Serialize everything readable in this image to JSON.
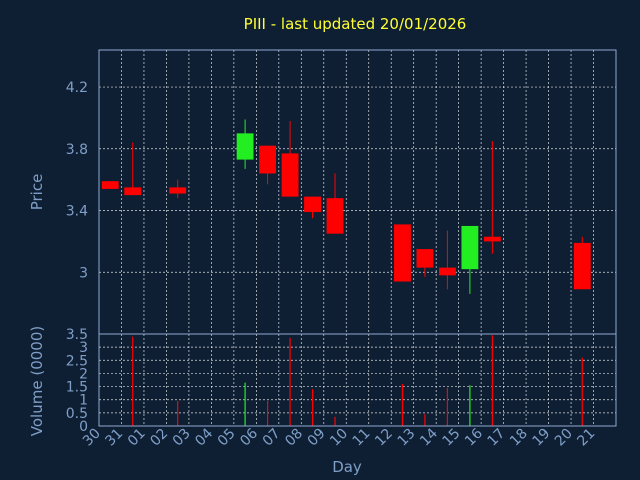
{
  "chart_data": [
    {
      "type": "candlestick",
      "title": "PIII - last updated 20/01/2026",
      "ylabel": "Price",
      "yticks": [
        4.2,
        3.8,
        3.4,
        3
      ],
      "ytick_labels": [
        "4.2",
        "3.8",
        "3.4",
        "3"
      ],
      "ylim": [
        2.6,
        4.44
      ],
      "grid": true,
      "colors": {
        "up": "#22ee22",
        "down": "#ff0000"
      },
      "candles": [
        {
          "day": "30",
          "open": 3.59,
          "close": 3.54,
          "high": 3.59,
          "low": 3.54
        },
        {
          "day": "31",
          "open": 3.55,
          "close": 3.5,
          "high": 3.84,
          "low": 3.5
        },
        {
          "day": "02",
          "open": 3.55,
          "close": 3.51,
          "high": 3.6,
          "low": 3.48
        },
        {
          "day": "05",
          "open": 3.73,
          "close": 3.9,
          "high": 3.99,
          "low": 3.67
        },
        {
          "day": "06",
          "open": 3.82,
          "close": 3.64,
          "high": 3.82,
          "low": 3.57
        },
        {
          "day": "07",
          "open": 3.77,
          "close": 3.49,
          "high": 3.98,
          "low": 3.49
        },
        {
          "day": "08",
          "open": 3.49,
          "close": 3.39,
          "high": 3.49,
          "low": 3.35
        },
        {
          "day": "09",
          "open": 3.48,
          "close": 3.25,
          "high": 3.64,
          "low": 3.25
        },
        {
          "day": "12",
          "open": 3.31,
          "close": 2.94,
          "high": 3.31,
          "low": 2.94
        },
        {
          "day": "13",
          "open": 3.15,
          "close": 3.03,
          "high": 3.15,
          "low": 2.97
        },
        {
          "day": "14",
          "open": 3.03,
          "close": 2.98,
          "high": 3.27,
          "low": 2.89
        },
        {
          "day": "15",
          "open": 3.02,
          "close": 3.3,
          "high": 3.3,
          "low": 2.86
        },
        {
          "day": "16",
          "open": 3.23,
          "close": 3.2,
          "high": 3.85,
          "low": 3.12
        },
        {
          "day": "20",
          "open": 3.19,
          "close": 2.89,
          "high": 3.23,
          "low": 2.89
        }
      ]
    },
    {
      "type": "bar",
      "ylabel": "Volume (0000)",
      "xlabel": "Day",
      "yticks": [
        3.5,
        3,
        2.5,
        2,
        1.5,
        1,
        0.5,
        0
      ],
      "ytick_labels": [
        "3.5",
        "3",
        "2.5",
        "2",
        "1.5",
        "1",
        "0.5",
        "0"
      ],
      "ylim": [
        0,
        3.5
      ],
      "grid": true,
      "categories": [
        "30",
        "31",
        "01",
        "02",
        "03",
        "04",
        "05",
        "06",
        "07",
        "08",
        "09",
        "10",
        "11",
        "12",
        "13",
        "14",
        "15",
        "16",
        "17",
        "18",
        "19",
        "20",
        "21"
      ],
      "volumes": [
        {
          "day": "31",
          "value": 3.4,
          "direction": "down"
        },
        {
          "day": "02",
          "value": 0.95,
          "direction": "down"
        },
        {
          "day": "05",
          "value": 1.65,
          "direction": "up"
        },
        {
          "day": "06",
          "value": 0.95,
          "direction": "down"
        },
        {
          "day": "07",
          "value": 3.35,
          "direction": "down"
        },
        {
          "day": "08",
          "value": 1.4,
          "direction": "down"
        },
        {
          "day": "09",
          "value": 0.35,
          "direction": "down"
        },
        {
          "day": "12",
          "value": 1.6,
          "direction": "down"
        },
        {
          "day": "13",
          "value": 0.45,
          "direction": "down"
        },
        {
          "day": "14",
          "value": 1.45,
          "direction": "down"
        },
        {
          "day": "15",
          "value": 1.55,
          "direction": "up"
        },
        {
          "day": "16",
          "value": 3.45,
          "direction": "down"
        },
        {
          "day": "20",
          "value": 2.6,
          "direction": "down"
        }
      ]
    }
  ]
}
